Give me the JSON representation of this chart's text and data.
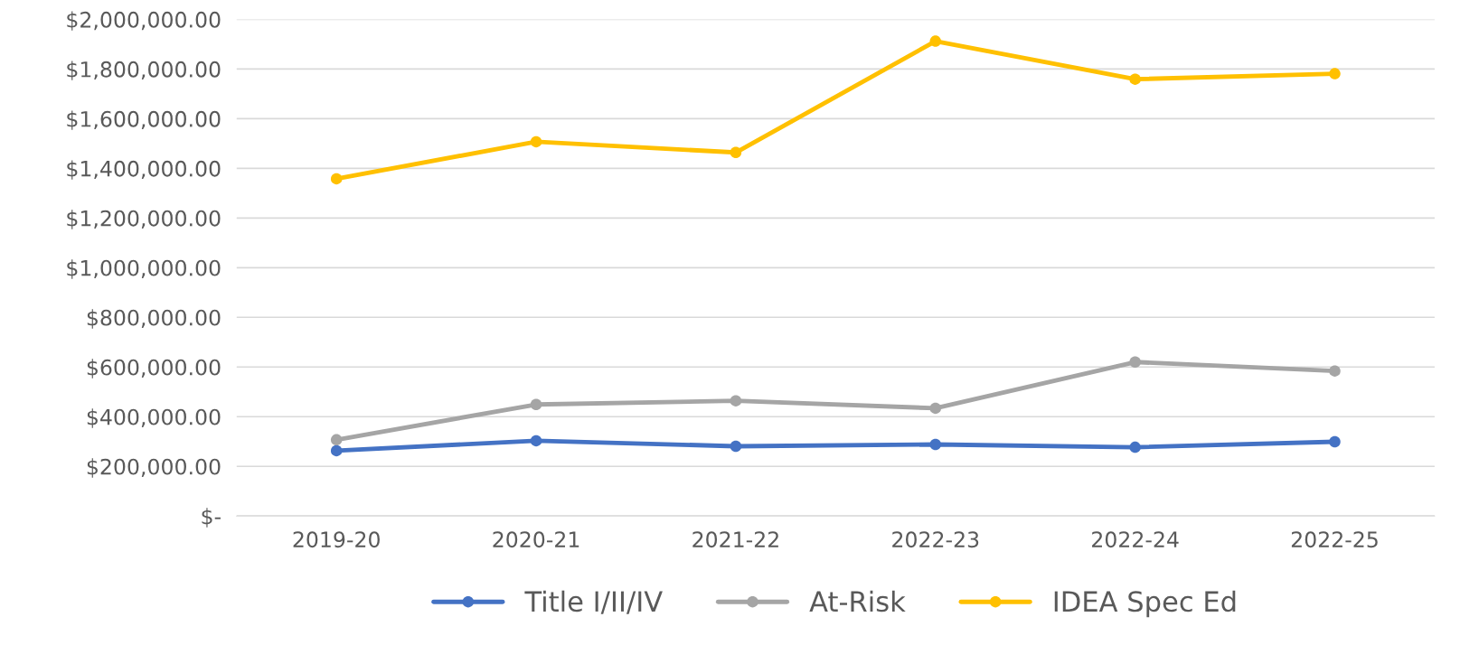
{
  "chart_data": {
    "type": "line",
    "categories": [
      "2019-20",
      "2020-21",
      "2021-22",
      "2022-23",
      "2022-24",
      "2022-25"
    ],
    "series": [
      {
        "name": "Title I/II/IV",
        "color": "#4472c4",
        "values": [
          263000,
          303000,
          281000,
          288000,
          277000,
          299000
        ]
      },
      {
        "name": "At-Risk",
        "color": "#a5a5a5",
        "values": [
          307000,
          449000,
          464000,
          434000,
          620000,
          584000
        ]
      },
      {
        "name": "IDEA Spec Ed",
        "color": "#ffc000",
        "values": [
          1358000,
          1507000,
          1464000,
          1912000,
          1759000,
          1781000
        ]
      }
    ],
    "ylim": [
      0,
      2000000
    ],
    "yticks": [
      {
        "value": 0,
        "label": "$-"
      },
      {
        "value": 200000,
        "label": "$200,000.00"
      },
      {
        "value": 400000,
        "label": "$400,000.00"
      },
      {
        "value": 600000,
        "label": "$600,000.00"
      },
      {
        "value": 800000,
        "label": "$800,000.00"
      },
      {
        "value": 1000000,
        "label": "$1,000,000.00"
      },
      {
        "value": 1200000,
        "label": "$1,200,000.00"
      },
      {
        "value": 1400000,
        "label": "$1,400,000.00"
      },
      {
        "value": 1600000,
        "label": "$1,600,000.00"
      },
      {
        "value": 1800000,
        "label": "$1,800,000.00"
      },
      {
        "value": 2000000,
        "label": "$2,000,000.00"
      }
    ],
    "grid": "y",
    "legend": "bottom",
    "marker": "circle",
    "line_style": "solid"
  }
}
